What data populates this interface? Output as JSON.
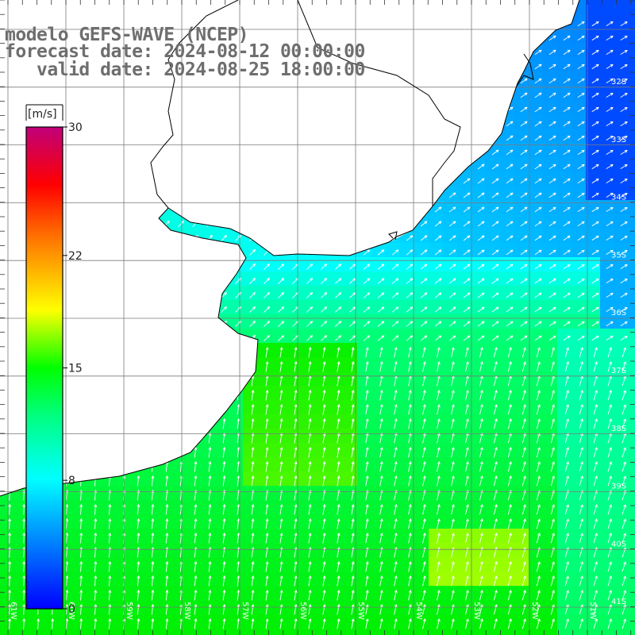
{
  "title": {
    "line1": "modelo GEFS-WAVE (NCEP)",
    "line2": "forecast date: 2024-08-12 00:00:00",
    "line3": "   valid date: 2024-08-25 18:00:00"
  },
  "colorbar": {
    "unit": "[m/s]",
    "ticks": [
      "30",
      "22",
      "15",
      "8",
      "0"
    ],
    "tick_values": [
      30,
      22,
      15,
      8,
      0
    ],
    "range": [
      0,
      30
    ],
    "colors": [
      "#0000ff",
      "#00c8ff",
      "#00ffff",
      "#00e800",
      "#00ff00",
      "#ffff00",
      "#ff7f00",
      "#ff0000",
      "#c8006e"
    ]
  },
  "map": {
    "lat_labels": [
      "32S",
      "33S",
      "34S",
      "35S",
      "36S",
      "37S",
      "38S",
      "39S",
      "40S",
      "41S"
    ],
    "lon_labels": [
      "61W",
      "60W",
      "59W",
      "58W",
      "57W",
      "56W",
      "55W",
      "54W",
      "53W",
      "52W",
      "51W"
    ],
    "land_color": "#ffffff",
    "grid_color": "#7a7a7a",
    "coast_color": "#000000",
    "arrow_color": "#ffffff"
  }
}
